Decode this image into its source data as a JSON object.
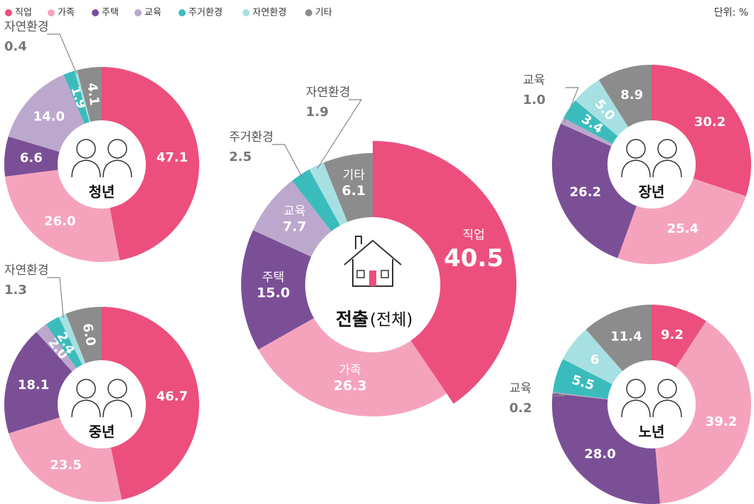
{
  "legend": {
    "categories": [
      "직업",
      "가족",
      "주택",
      "교육",
      "주거환경",
      "자연환경",
      "기타"
    ],
    "colors": [
      "#ec4f7d",
      "#f5a3bd",
      "#7b4f96",
      "#bca8cc",
      "#3bbcbc",
      "#a6e0e2",
      "#8c8c8c"
    ]
  },
  "unit": "단위: %",
  "chart_data": [
    {
      "type": "donut",
      "title": "청년",
      "values": [
        47.1,
        26.0,
        6.6,
        14.0,
        1.9,
        0.4,
        4.1
      ],
      "value_labels": [
        "47.1",
        "26.0",
        "6.6",
        "14.0",
        "1.9",
        "0.4",
        "4.1"
      ]
    },
    {
      "type": "donut",
      "title": "중년",
      "values": [
        46.7,
        23.5,
        18.1,
        2.0,
        2.4,
        1.3,
        6.0
      ],
      "value_labels": [
        "46.7",
        "23.5",
        "18.1",
        "2.0",
        "2.4",
        "1.3",
        "6.0"
      ]
    },
    {
      "type": "donut",
      "title": "전출",
      "subtitle": "(전체)",
      "values": [
        40.5,
        26.3,
        15.0,
        7.7,
        2.5,
        1.9,
        6.1
      ],
      "value_labels": [
        "40.5",
        "26.3",
        "15.0",
        "7.7",
        "2.5",
        "1.9",
        "6.1"
      ]
    },
    {
      "type": "donut",
      "title": "장년",
      "values": [
        30.2,
        25.4,
        26.2,
        1.0,
        3.4,
        5.0,
        8.9
      ],
      "value_labels": [
        "30.2",
        "25.4",
        "26.2",
        "1.0",
        "3.4",
        "5.0",
        "8.9"
      ]
    },
    {
      "type": "donut",
      "title": "노년",
      "values": [
        9.2,
        39.2,
        28.0,
        0.2,
        5.5,
        6,
        11.4
      ],
      "value_labels": [
        "9.2",
        "39.2",
        "28.0",
        "0.2",
        "5.5",
        "6",
        "11.4"
      ]
    }
  ]
}
